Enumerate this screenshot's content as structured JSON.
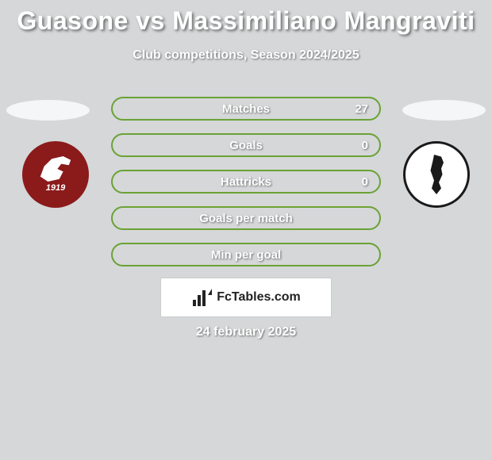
{
  "title": "Guasone vs Massimiliano Mangraviti",
  "subtitle": "Club competitions, Season 2024/2025",
  "team_left": {
    "year_text": "1919",
    "shield_bg": "#8b1a1a",
    "shield_fg": "#ffffff"
  },
  "team_right": {
    "shield_bg": "#ffffff",
    "shield_border": "#1a1a1a"
  },
  "stats": [
    {
      "label": "Matches",
      "value": "27",
      "border_color": "#6aa235"
    },
    {
      "label": "Goals",
      "value": "0",
      "border_color": "#6aa235"
    },
    {
      "label": "Hattricks",
      "value": "0",
      "border_color": "#6aa235"
    },
    {
      "label": "Goals per match",
      "value": "",
      "border_color": "#6aa235"
    },
    {
      "label": "Min per goal",
      "value": "",
      "border_color": "#6aa235"
    }
  ],
  "styling": {
    "background_color": "#d5d7d8",
    "title_color": "#ffffff",
    "title_fontsize": 32,
    "subtitle_fontsize": 16,
    "stat_label_fontsize": 15,
    "pill_height": 30,
    "pill_width": 340,
    "ellipse_color": "#f5f6f7"
  },
  "brand": {
    "text": "FcTables.com"
  },
  "date": "24 february 2025"
}
